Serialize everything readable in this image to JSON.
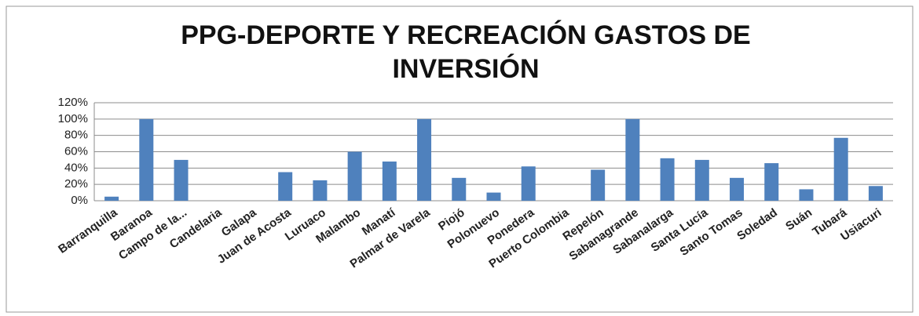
{
  "chart_data": {
    "type": "bar",
    "title": [
      "PPG-DEPORTE Y RECREACIÓN GASTOS DE",
      "INVERSIÓN"
    ],
    "categories": [
      "Barranquilla",
      "Baranoa",
      "Campo de la...",
      "Candelaria",
      "Galapa",
      "Juan de Acosta",
      "Luruaco",
      "Malambo",
      "Manatí",
      "Palmar de Varela",
      "Piojó",
      "Polonuevo",
      "Ponedera",
      "Puerto Colombia",
      "Repelón",
      "Sabanagrande",
      "Sabanalarga",
      "Santa Lucía",
      "Santo Tomas",
      "Soledad",
      "Suán",
      "Tubará",
      "Usiacuri"
    ],
    "values": [
      5,
      100,
      50,
      0,
      0,
      35,
      25,
      60,
      48,
      100,
      28,
      10,
      42,
      0,
      38,
      100,
      52,
      50,
      28,
      46,
      14,
      77,
      18
    ],
    "color": "#4f81bd",
    "ylim": [
      0,
      120
    ],
    "yticks": [
      {
        "value": 0,
        "label": "0%"
      },
      {
        "value": 20,
        "label": "20%"
      },
      {
        "value": 40,
        "label": "40%"
      },
      {
        "value": 60,
        "label": "60%"
      },
      {
        "value": 80,
        "label": "80%"
      },
      {
        "value": 100,
        "label": "100%"
      },
      {
        "value": 120,
        "label": "120%"
      }
    ],
    "grid": true
  }
}
